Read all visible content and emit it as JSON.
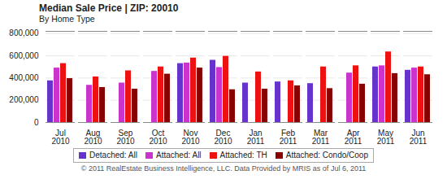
{
  "chart_data": {
    "type": "bar",
    "title": "Median Sale Price | ZIP: 20010",
    "subtitle": "By Home Type",
    "footer": "© 2011 RealEstate Business Intelligence, LLC. Data Provided by MRIS as of Jul 6, 2011",
    "categories": [
      "Jul\n2010",
      "Aug\n2010",
      "Sep\n2010",
      "Oct\n2010",
      "Nov\n2010",
      "Dec\n2010",
      "Jan\n2011",
      "Feb\n2011",
      "Mar\n2011",
      "Apr\n2011",
      "May\n2011",
      "Jun\n2011"
    ],
    "series": [
      {
        "name": "Detached: All",
        "color": "#6633CC",
        "values": [
          375000,
          0,
          0,
          0,
          530000,
          560000,
          355000,
          365000,
          350000,
          0,
          500000,
          470000
        ]
      },
      {
        "name": "Attached: All",
        "color": "#CC33CC",
        "values": [
          490000,
          335000,
          355000,
          460000,
          535000,
          495000,
          0,
          0,
          0,
          445000,
          510000,
          490000
        ]
      },
      {
        "name": "Attached: TH",
        "color": "#EE1111",
        "values": [
          530000,
          410000,
          465000,
          500000,
          580000,
          595000,
          455000,
          375000,
          500000,
          510000,
          635000,
          500000
        ]
      },
      {
        "name": "Attached: Condo/Coop",
        "color": "#880000",
        "values": [
          395000,
          315000,
          300000,
          435000,
          490000,
          295000,
          300000,
          330000,
          305000,
          345000,
          440000,
          430000
        ]
      }
    ],
    "ylim": [
      0,
      820000
    ],
    "yticks": [
      0,
      {
        "value": 200000,
        "label": "200,000"
      },
      {
        "value": 400000,
        "label": "400,000"
      },
      {
        "value": 600000,
        "label": "600,000"
      },
      {
        "value": 800000,
        "label": "800,000"
      }
    ],
    "grid": true,
    "legend": "bottom"
  }
}
